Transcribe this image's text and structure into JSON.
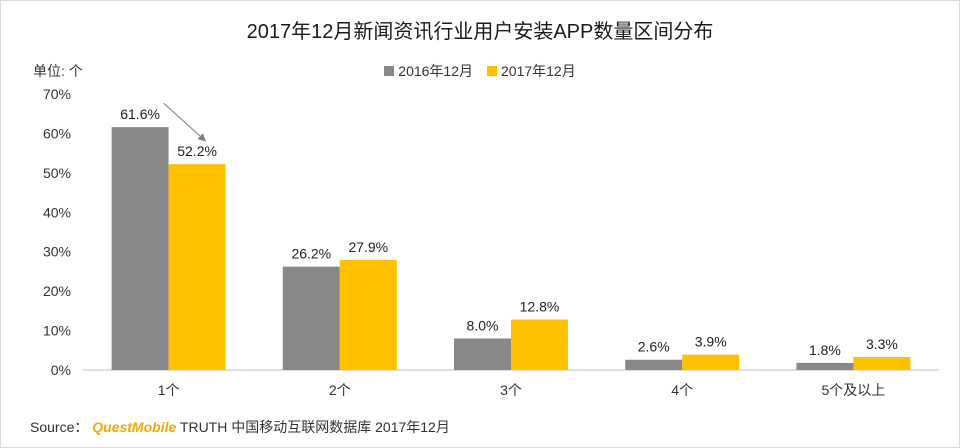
{
  "chart_data": {
    "type": "bar",
    "title": "2017年12月新闻资讯行业用户安装APP数量区间分布",
    "unit_label": "单位: 个",
    "categories": [
      "1个",
      "2个",
      "3个",
      "4个",
      "5个及以上"
    ],
    "series": [
      {
        "name": "2016年12月",
        "color": "#888888",
        "values": [
          61.6,
          26.2,
          8.0,
          2.6,
          1.8
        ],
        "labels": [
          "61.6%",
          "26.2%",
          "8.0%",
          "2.6%",
          "1.8%"
        ]
      },
      {
        "name": "2017年12月",
        "color": "#ffc000",
        "values": [
          52.2,
          27.9,
          12.8,
          3.9,
          3.3
        ],
        "labels": [
          "52.2%",
          "27.9%",
          "12.8%",
          "3.9%",
          "3.3%"
        ]
      }
    ],
    "ylim": [
      0,
      70
    ],
    "yticks": [
      "0%",
      "10%",
      "20%",
      "30%",
      "40%",
      "50%",
      "60%",
      "70%"
    ],
    "grid": false,
    "legend_position": "top-center",
    "annotation": "arrow from 61.6% to 52.2%"
  },
  "footer": {
    "source_label": "Source：",
    "brand": "QuestMobile",
    "rest": " TRUTH 中国移动互联网数据库 2017年12月"
  }
}
